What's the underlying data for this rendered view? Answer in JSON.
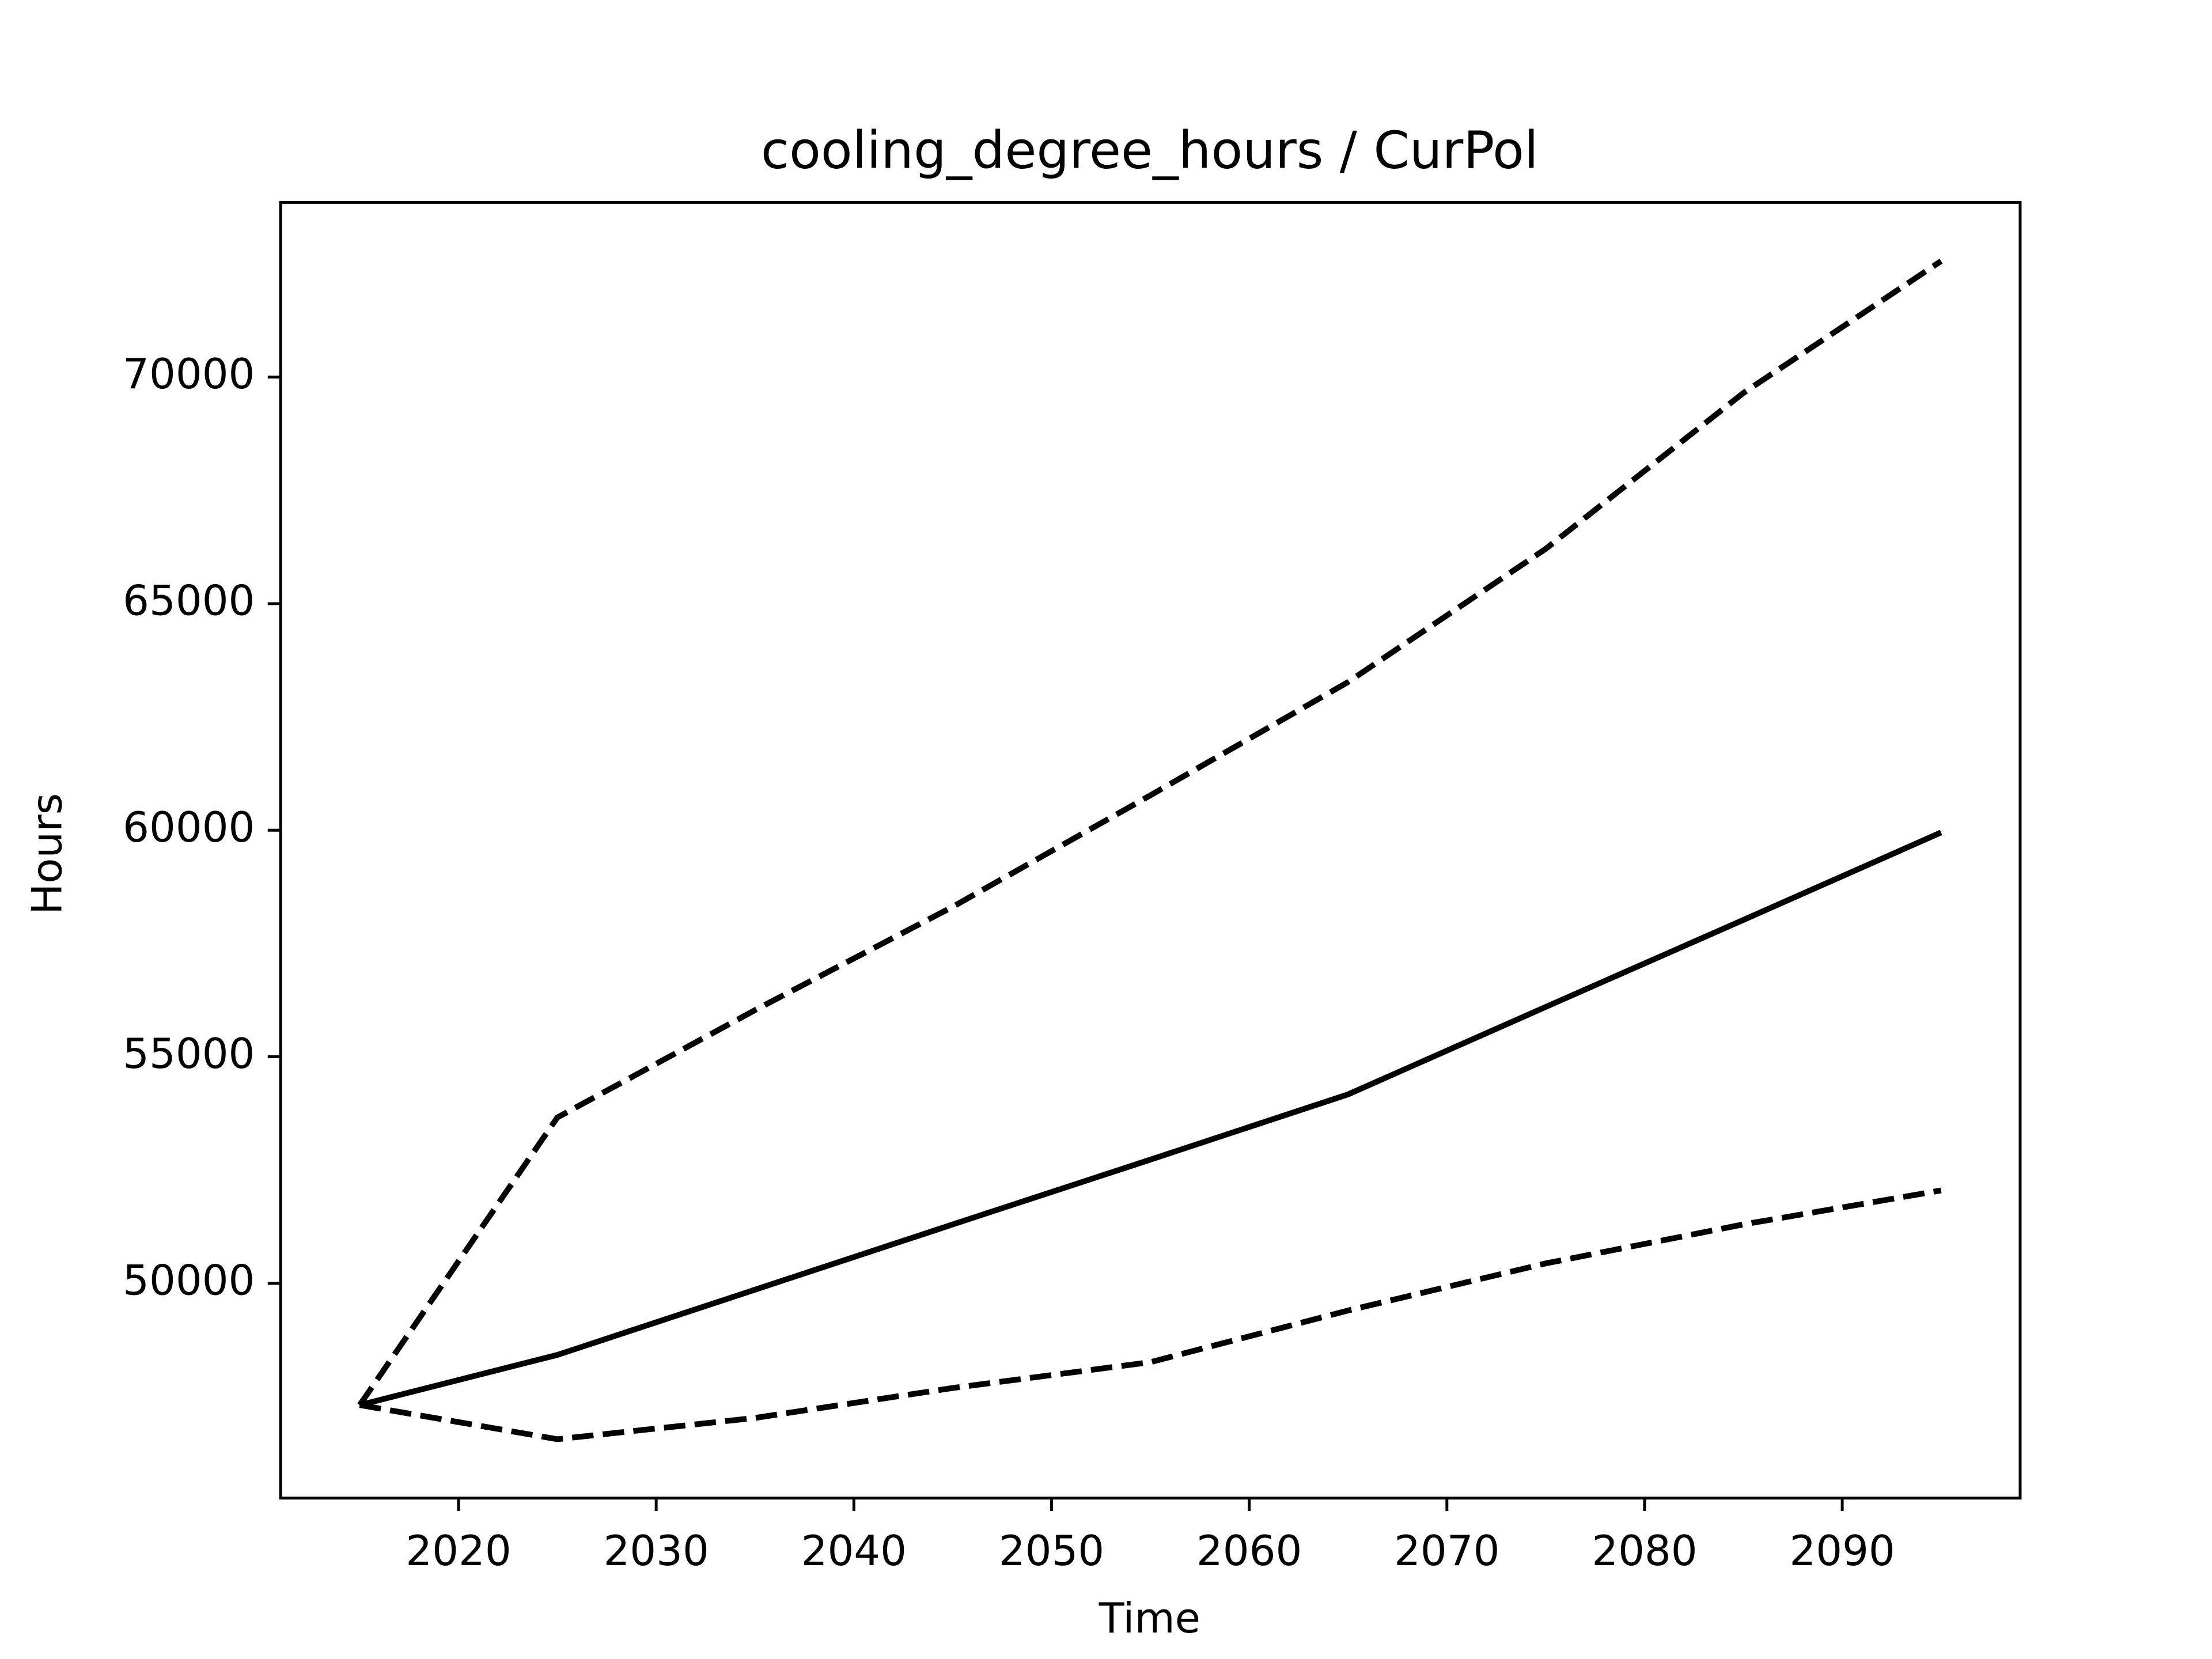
{
  "chart_data": {
    "type": "line",
    "title": "cooling_degree_hours / CurPol",
    "x_label": "Time",
    "y_label": "Hours",
    "x": [
      2015,
      2025,
      2035,
      2045,
      2055,
      2065,
      2075,
      2085,
      2095
    ],
    "series": [
      {
        "color": "#000000",
        "dashed": false,
        "values": [
          47314,
          48420,
          49860,
          51300,
          52730,
          54170,
          56100,
          58020,
          59950
        ]
      },
      {
        "color": "#000000",
        "dashed": true,
        "values": [
          47314,
          53660,
          56030,
          58310,
          60770,
          63270,
          66210,
          69650,
          72560
        ]
      },
      {
        "color": "#000000",
        "dashed": true,
        "values": [
          47314,
          46560,
          47030,
          47690,
          48260,
          49400,
          50440,
          51300,
          52050
        ]
      }
    ],
    "xlim": [
      2011,
      2099
    ],
    "ylim": [
      45260,
      73855
    ],
    "xticks": [
      2020,
      2030,
      2040,
      2050,
      2060,
      2070,
      2080,
      2090
    ],
    "yticks": [
      50000,
      55000,
      60000,
      65000,
      70000
    ],
    "grid": false
  }
}
